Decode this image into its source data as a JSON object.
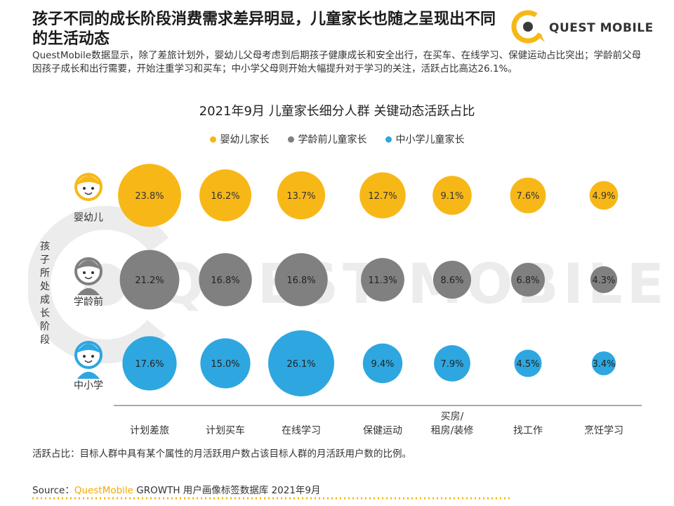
{
  "header": {
    "headline": "孩子不同的成长阶段消费需求差异明显，儿童家长也随之呈现出不同的生活动态",
    "logo_text": "QUEST MOBILE",
    "intro": "QuestMobile数据显示，除了差旅计划外，婴幼儿父母考虑到后期孩子健康成长和安全出行，在买车、在线学习、保健运动占比突出；学龄前父母因孩子成长和出行需要，开始注重学习和买车；中小学父母则开始大幅提升对于学习的关注，活跃占比高达26.1%。"
  },
  "watermark": {
    "text": "QUEST MOBILE"
  },
  "chart_data": {
    "type": "bubble-matrix",
    "title": "2021年9月 儿童家长细分人群 关键动态活跃占比",
    "y_axis_title": "孩子所处成长阶段",
    "legend": [
      "婴幼儿家长",
      "学龄前儿童家长",
      "中小学儿童家长"
    ],
    "categories": [
      "计划差旅",
      "计划买车",
      "在线学习",
      "保健运动",
      "买房/租房/装修",
      "找工作",
      "烹饪学习"
    ],
    "category_lines": [
      [
        "计划差旅"
      ],
      [
        "计划买车"
      ],
      [
        "在线学习"
      ],
      [
        "保健运动"
      ],
      [
        "买房/",
        "租房/装修"
      ],
      [
        "找工作"
      ],
      [
        "烹饪学习"
      ]
    ],
    "series": [
      {
        "name": "婴幼儿家长",
        "row_label": "婴幼儿",
        "color": "#f7b817",
        "values": [
          23.8,
          16.2,
          13.7,
          12.7,
          9.1,
          7.6,
          4.9
        ]
      },
      {
        "name": "学龄前儿童家长",
        "row_label": "学龄前",
        "color": "#808080",
        "values": [
          21.2,
          16.8,
          16.8,
          11.3,
          8.6,
          6.8,
          4.3
        ]
      },
      {
        "name": "中小学儿童家长",
        "row_label": "中小学",
        "color": "#2ea7e0",
        "values": [
          17.6,
          15.0,
          26.1,
          9.4,
          7.9,
          4.5,
          3.4
        ]
      }
    ],
    "value_suffix": "%"
  },
  "footer": {
    "note": "活跃占比：目标人群中具有某个属性的月活跃用户数占该目标人群的月活跃用户数的比例。",
    "source_prefix": "Source：",
    "source_brand": "QuestMobile",
    "source_rest": " GROWTH 用户画像标签数据库 2021年9月"
  }
}
